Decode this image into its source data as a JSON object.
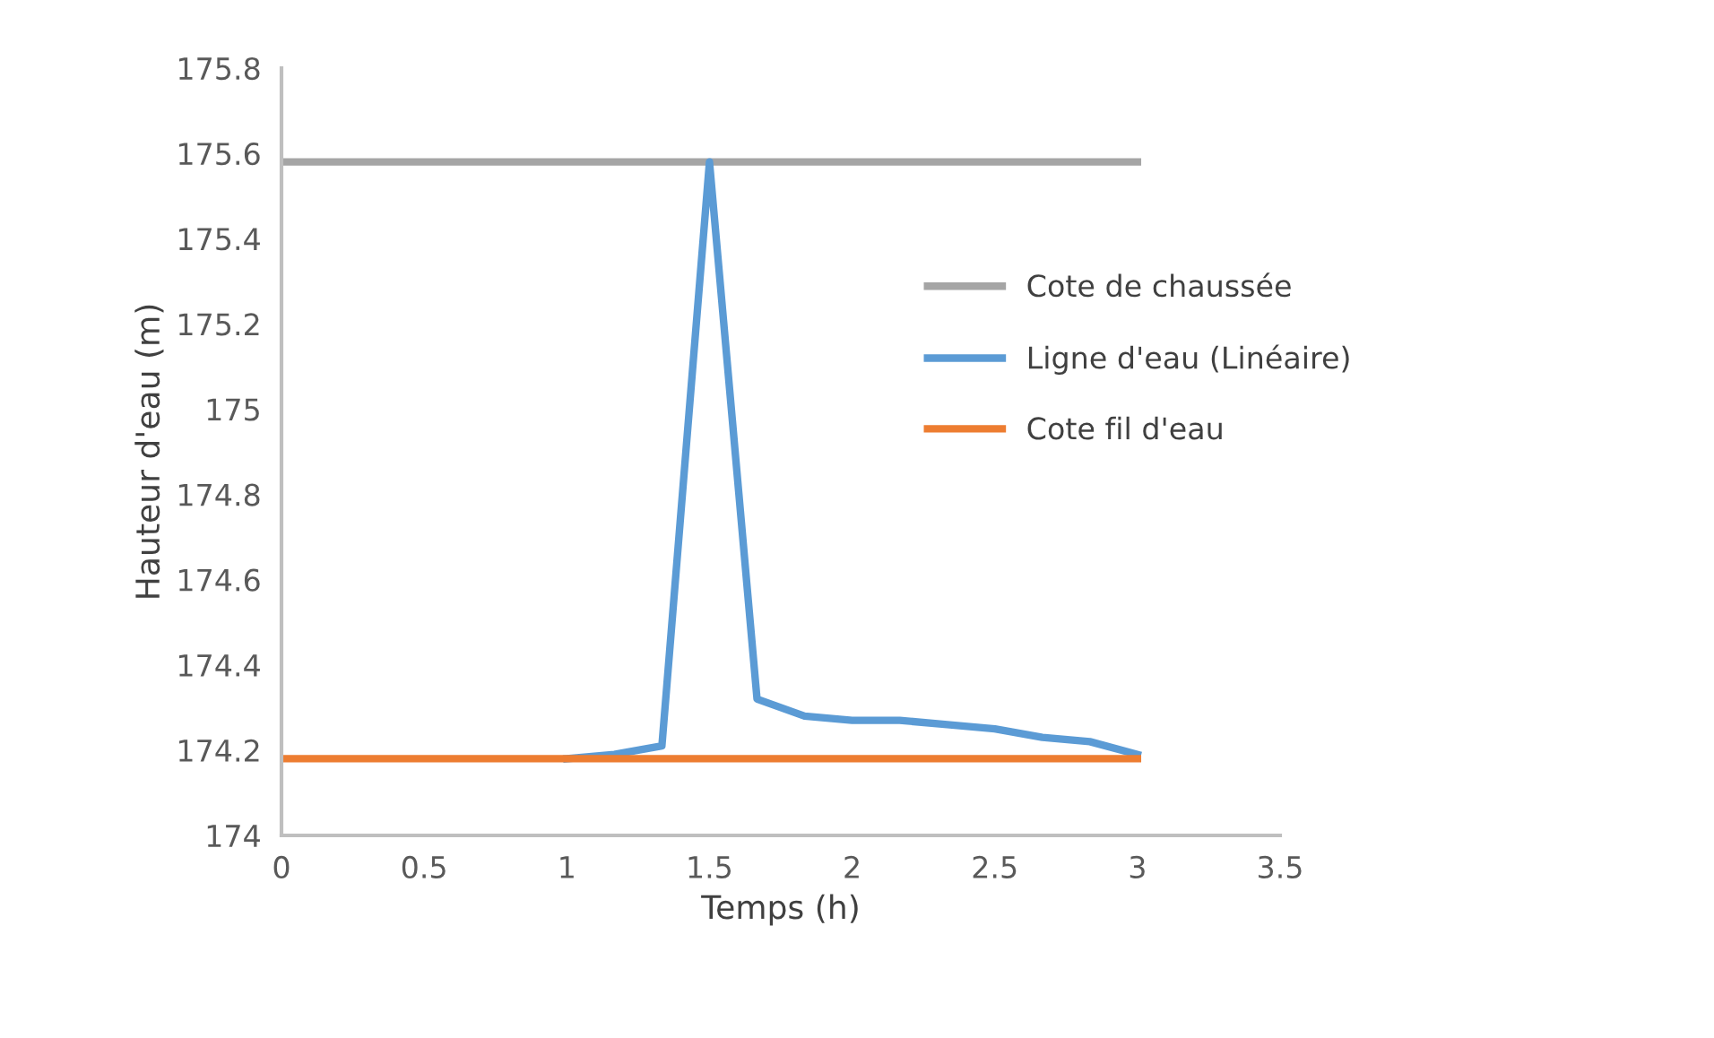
{
  "chart_data": {
    "type": "line",
    "xlabel": "Temps (h)",
    "ylabel": "Hauteur d'eau (m)",
    "xlim": [
      0,
      3.5
    ],
    "xticks": [
      0,
      0.5,
      1,
      1.5,
      2,
      2.5,
      3,
      3.5
    ],
    "ylim": [
      174,
      175.8
    ],
    "yticks": [
      174,
      174.2,
      174.4,
      174.6,
      174.8,
      175,
      175.2,
      175.4,
      175.6,
      175.8
    ],
    "grid": false,
    "legend": "right",
    "marker": "none",
    "line_style": "solid",
    "series": [
      {
        "name": "Cote de chaussée",
        "color": "#a5a5a5",
        "x": [
          0,
          3
        ],
        "values": [
          175.58,
          175.58
        ]
      },
      {
        "name": "Ligne d'eau (Linéaire)",
        "color": "#5b9bd5",
        "x": [
          1,
          1.1667,
          1.3333,
          1.5,
          1.6667,
          1.8333,
          2,
          2.1667,
          2.3333,
          2.5,
          2.6667,
          2.8333,
          3
        ],
        "values": [
          174.18,
          174.19,
          174.21,
          175.58,
          174.32,
          174.28,
          174.27,
          174.27,
          174.26,
          174.25,
          174.23,
          174.22,
          174.19
        ]
      },
      {
        "name": "Cote fil d'eau",
        "color": "#ed7d31",
        "x": [
          0,
          3
        ],
        "values": [
          174.18,
          174.18
        ]
      }
    ]
  }
}
